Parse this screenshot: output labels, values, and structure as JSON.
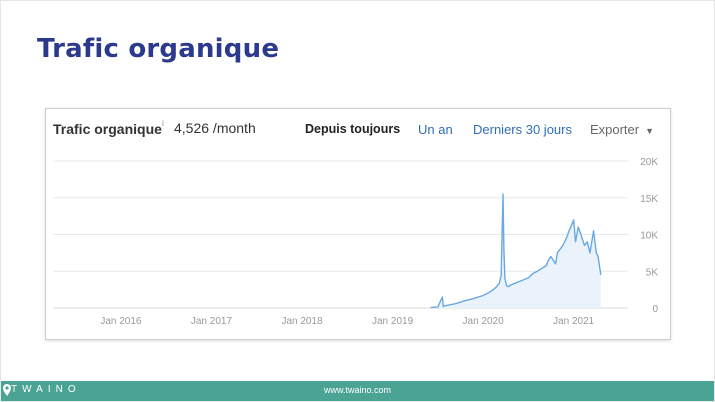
{
  "slide": {
    "title": "Trafic organique"
  },
  "card": {
    "title": "Trafic organique",
    "info_icon": "i",
    "value": "4,526 /month",
    "tabs": [
      {
        "label": "Depuis toujours",
        "active": true
      },
      {
        "label": "Un an",
        "active": false
      },
      {
        "label": "Derniers 30 jours",
        "active": false
      }
    ],
    "export_label": "Exporter",
    "export_icon": "caret-down-icon"
  },
  "footer": {
    "brand": "TWAINO",
    "url": "www.twaino.com",
    "color": "#4ba394"
  },
  "colors": {
    "title": "#2b3a8c",
    "line": "#6aa8e0",
    "fill": "#eaf3fc",
    "link": "#2e6fb4"
  },
  "chart_data": {
    "type": "area",
    "x_ticks": [
      "Jan 2016",
      "Jan 2017",
      "Jan 2018",
      "Jan 2019",
      "Jan 2020",
      "Jan 2021"
    ],
    "y_ticks": [
      "0",
      "5K",
      "10K",
      "15K",
      "20K"
    ],
    "ylim": [
      0,
      20000
    ],
    "grid": true,
    "series": [
      {
        "x": [
          2019.42,
          2019.5,
          2019.55,
          2019.56,
          2019.58,
          2019.7,
          2019.8,
          2019.9,
          2020.0,
          2020.05,
          2020.1,
          2020.15,
          2020.18,
          2020.2,
          2020.22,
          2020.23,
          2020.24,
          2020.26,
          2020.28,
          2020.3,
          2020.4,
          2020.5,
          2020.55,
          2020.6,
          2020.65,
          2020.7,
          2020.72,
          2020.75,
          2020.8,
          2020.82,
          2020.85,
          2020.88,
          2020.92,
          2020.95,
          2021.0,
          2021.02,
          2021.05,
          2021.08,
          2021.12,
          2021.15,
          2021.18,
          2021.2,
          2021.22,
          2021.25,
          2021.27,
          2021.3
        ],
        "y": [
          50,
          150,
          1500,
          200,
          300,
          600,
          1000,
          1300,
          1700,
          2000,
          2400,
          2900,
          3400,
          4500,
          15500,
          8000,
          4000,
          3000,
          2900,
          3100,
          3600,
          4100,
          4700,
          5000,
          5400,
          5800,
          6500,
          7000,
          6000,
          7500,
          8000,
          8500,
          9500,
          10500,
          12000,
          9000,
          11000,
          10000,
          8500,
          9000,
          7500,
          9000,
          10500,
          7500,
          7000,
          4500
        ]
      }
    ]
  }
}
